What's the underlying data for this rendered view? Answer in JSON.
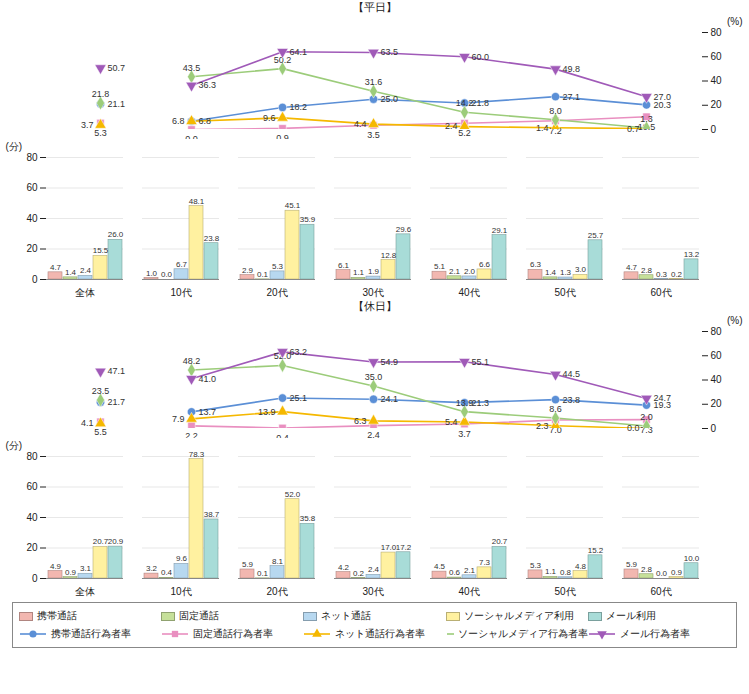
{
  "chart_data": [
    {
      "type": "line",
      "title": "【平日】",
      "categories": [
        "全体",
        "10代",
        "20代",
        "30代",
        "40代",
        "50代",
        "60代"
      ],
      "y2lim": [
        0,
        80
      ],
      "y2ticks": [
        0,
        20,
        40,
        60,
        80
      ],
      "y2label": "(%)",
      "tick_labels": "y",
      "data_labels": true,
      "legend": "bottom",
      "series": [
        {
          "name": "携帯通話行為者率",
          "color": "#5b8fd6",
          "marker": "circle",
          "axis": "y2",
          "values": [
            21.1,
            6.8,
            18.2,
            25.0,
            21.8,
            27.1,
            20.3
          ]
        },
        {
          "name": "固定通話行為者率",
          "color": "#e98fc0",
          "marker": "square",
          "axis": "y2",
          "values": [
            5.3,
            0.0,
            0.9,
            3.5,
            5.2,
            7.2,
            10.5
          ]
        },
        {
          "name": "ネット通話行為者率",
          "color": "#f5b800",
          "marker": "triangle",
          "axis": "y2",
          "values": [
            3.7,
            6.8,
            9.6,
            4.4,
            2.4,
            1.4,
            0.7
          ]
        },
        {
          "name": "ソーシャルメディア行為者率",
          "color": "#9ccc7a",
          "marker": "diamond",
          "axis": "y2",
          "values": [
            21.8,
            43.5,
            50.2,
            31.6,
            14.2,
            8.0,
            1.3
          ]
        },
        {
          "name": "メール行為者率",
          "color": "#a05ab8",
          "marker": "triangle-down",
          "axis": "y2",
          "values": [
            50.7,
            36.3,
            64.1,
            63.5,
            60.0,
            49.8,
            27.0
          ]
        }
      ]
    },
    {
      "type": "bar",
      "categories": [
        "全体",
        "10代",
        "20代",
        "30代",
        "40代",
        "50代",
        "60代"
      ],
      "ylim": [
        0,
        80
      ],
      "yticks": [
        0,
        20,
        40,
        60,
        80
      ],
      "ylabel": "(分)",
      "grid": true,
      "data_labels": true,
      "legend": "bottom",
      "series": [
        {
          "name": "携帯通話",
          "color": "#f2b7b0",
          "values": [
            4.7,
            1.0,
            2.9,
            6.1,
            5.1,
            6.3,
            4.7
          ]
        },
        {
          "name": "固定通話",
          "color": "#c6e09a",
          "values": [
            1.4,
            0.0,
            0.1,
            1.1,
            2.1,
            1.4,
            2.8
          ]
        },
        {
          "name": "ネット通話",
          "color": "#b7d8f0",
          "values": [
            2.4,
            6.7,
            5.3,
            1.9,
            2.0,
            1.3,
            0.3
          ]
        },
        {
          "name": "ソーシャルメディア利用",
          "color": "#fff1a0",
          "values": [
            15.5,
            48.1,
            45.1,
            12.8,
            6.6,
            3.0,
            0.2
          ]
        },
        {
          "name": "メール利用",
          "color": "#a8dcd8",
          "values": [
            26.0,
            23.8,
            35.9,
            29.6,
            29.1,
            25.7,
            13.2
          ]
        }
      ]
    },
    {
      "type": "line",
      "title": "【休日】",
      "categories": [
        "全体",
        "10代",
        "20代",
        "30代",
        "40代",
        "50代",
        "60代"
      ],
      "y2lim": [
        0,
        80
      ],
      "y2ticks": [
        0,
        20,
        40,
        60,
        80
      ],
      "y2label": "(%)",
      "tick_labels": "y",
      "data_labels": true,
      "legend": "bottom",
      "series": [
        {
          "name": "携帯通話行為者率",
          "color": "#5b8fd6",
          "marker": "circle",
          "axis": "y2",
          "values": [
            21.7,
            13.7,
            25.1,
            24.1,
            21.3,
            23.8,
            19.3
          ]
        },
        {
          "name": "固定通話行為者率",
          "color": "#e98fc0",
          "marker": "square",
          "axis": "y2",
          "values": [
            5.5,
            2.2,
            0.4,
            2.4,
            3.7,
            7.0,
            7.3
          ]
        },
        {
          "name": "ネット通話行為者率",
          "color": "#f5b800",
          "marker": "triangle",
          "axis": "y2",
          "values": [
            4.1,
            7.9,
            13.9,
            6.3,
            5.4,
            2.3,
            0.0
          ]
        },
        {
          "name": "ソーシャルメディア行為者率",
          "color": "#9ccc7a",
          "marker": "diamond",
          "axis": "y2",
          "values": [
            23.5,
            48.2,
            52.0,
            35.0,
            13.9,
            8.6,
            2.0
          ]
        },
        {
          "name": "メール行為者率",
          "color": "#a05ab8",
          "marker": "triangle-down",
          "axis": "y2",
          "values": [
            47.1,
            41.0,
            63.2,
            54.9,
            55.1,
            44.5,
            24.7
          ]
        }
      ]
    },
    {
      "type": "bar",
      "categories": [
        "全体",
        "10代",
        "20代",
        "30代",
        "40代",
        "50代",
        "60代"
      ],
      "ylim": [
        0,
        80
      ],
      "yticks": [
        0,
        20,
        40,
        60,
        80
      ],
      "ylabel": "(分)",
      "grid": true,
      "data_labels": true,
      "legend": "bottom",
      "series": [
        {
          "name": "携帯通話",
          "color": "#f2b7b0",
          "values": [
            4.9,
            3.2,
            5.9,
            4.2,
            4.5,
            5.3,
            5.9
          ]
        },
        {
          "name": "固定通話",
          "color": "#c6e09a",
          "values": [
            0.9,
            0.4,
            0.1,
            0.2,
            0.6,
            1.1,
            2.8
          ]
        },
        {
          "name": "ネット通話",
          "color": "#b7d8f0",
          "values": [
            3.1,
            9.6,
            8.1,
            2.4,
            2.1,
            0.8,
            0.0
          ]
        },
        {
          "name": "ソーシャルメディア利用",
          "color": "#fff1a0",
          "values": [
            20.7,
            78.3,
            52.0,
            17.0,
            7.3,
            4.8,
            0.9
          ]
        },
        {
          "name": "メール利用",
          "color": "#a8dcd8",
          "values": [
            20.9,
            38.7,
            35.8,
            17.2,
            20.7,
            15.2,
            10.0
          ]
        }
      ]
    }
  ]
}
